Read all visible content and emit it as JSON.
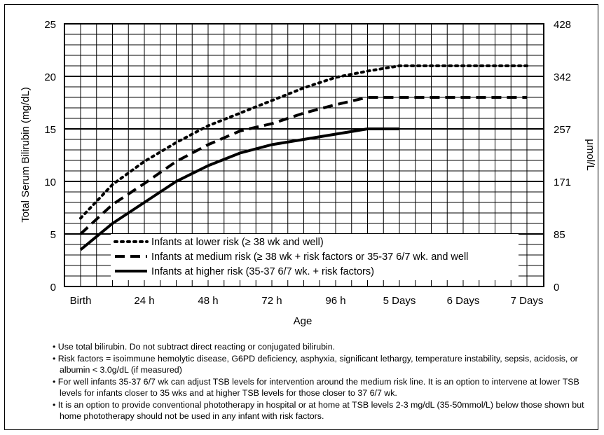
{
  "chart_data": {
    "type": "line",
    "ylabel": "Total Serum Bilirubin (mg/dL)",
    "y2label": "μmol/L",
    "xlabel": "Age",
    "categories": [
      "Birth",
      "24 h",
      "48 h",
      "72 h",
      "96 h",
      "5 Days",
      "6 Days",
      "7 Days"
    ],
    "x_ticks_hours": [
      0,
      24,
      48,
      72,
      96,
      120,
      144,
      168
    ],
    "ylim": [
      0,
      25
    ],
    "yticks": [
      0,
      5,
      10,
      15,
      20,
      25
    ],
    "y2ticks": [
      "0",
      "85",
      "171",
      "257",
      "342",
      "428"
    ],
    "grid": true,
    "legend_position": "lower-center",
    "series": [
      {
        "name": "Infants at lower risk (≥ 38 wk and well)",
        "style": "dotted",
        "x": [
          0,
          12,
          24,
          36,
          48,
          60,
          72,
          84,
          96,
          108,
          120,
          144,
          168
        ],
        "y": [
          6.5,
          9.7,
          11.9,
          13.7,
          15.3,
          16.5,
          17.7,
          18.9,
          19.9,
          20.5,
          21.0,
          21.0,
          21.0
        ]
      },
      {
        "name": "Infants at medium risk (≥ 38 wk + risk factors or 35-37 6/7 wk. and well",
        "style": "dashed",
        "x": [
          0,
          12,
          24,
          36,
          48,
          60,
          72,
          84,
          96,
          108,
          120,
          144,
          168
        ],
        "y": [
          5.0,
          7.8,
          9.8,
          11.9,
          13.5,
          14.8,
          15.5,
          16.5,
          17.3,
          18.0,
          18.0,
          18.0,
          18.0
        ]
      },
      {
        "name": "Infants at higher risk (35-37 6/7 wk. + risk factors)",
        "style": "solid",
        "x": [
          0,
          12,
          24,
          36,
          48,
          60,
          72,
          84,
          96,
          108,
          120
        ],
        "y": [
          3.5,
          6.0,
          8.0,
          10.0,
          11.5,
          12.7,
          13.5,
          14.0,
          14.5,
          15.0,
          15.0
        ]
      }
    ]
  },
  "notes": [
    "• Use total bilirubin.  Do not subtract direct reacting or conjugated bilirubin.",
    "• Risk factors = isoimmune hemolytic disease, G6PD deficiency, asphyxia, significant lethargy, temperature instability, sepsis, acidosis, or albumin < 3.0g/dL (if measured)",
    "• For well infants 35-37 6/7 wk can adjust TSB levels for intervention around the medium risk line.  It is an option to intervene at lower TSB levels for infants closer to 35 wks and at higher TSB levels for those closer to 37 6/7 wk.",
    "• It is an option to provide conventional phototherapy in hospital or at home at TSB levels 2-3 mg/dL (35-50mmol/L) below those shown but home phototherapy should not be used in any infant with risk factors."
  ]
}
